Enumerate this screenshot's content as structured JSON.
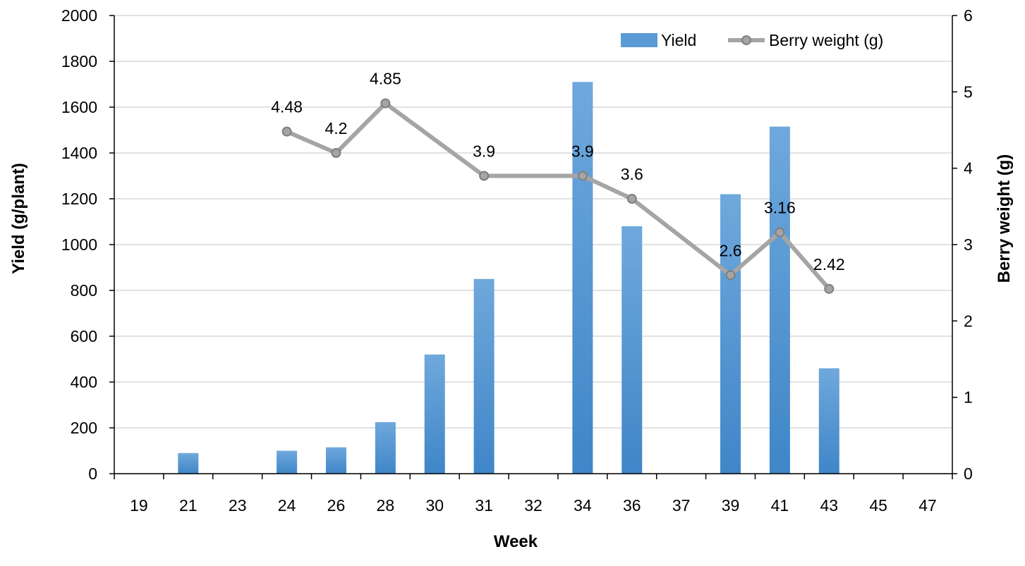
{
  "chart_data": {
    "type": "bar",
    "categories": [
      "19",
      "21",
      "23",
      "24",
      "26",
      "28",
      "30",
      "31",
      "32",
      "34",
      "36",
      "37",
      "39",
      "41",
      "43",
      "45",
      "47"
    ],
    "series": [
      {
        "name": "Yield",
        "type": "bar",
        "axis": "left",
        "color": "#5B9BD5",
        "values": [
          null,
          90,
          null,
          100,
          115,
          225,
          520,
          850,
          null,
          1710,
          1080,
          null,
          1220,
          1515,
          460,
          null,
          null
        ]
      },
      {
        "name": "Berry weight (g)",
        "type": "line",
        "axis": "right",
        "color": "#A5A5A5",
        "values": [
          null,
          null,
          null,
          4.48,
          4.2,
          4.85,
          null,
          3.9,
          null,
          3.9,
          3.6,
          null,
          2.6,
          3.16,
          2.42,
          null,
          null
        ],
        "labels": [
          null,
          null,
          null,
          "4.48",
          "4.2",
          "4.85",
          null,
          "3.9",
          null,
          "3.9",
          "3.6",
          null,
          "2.6",
          "3.16",
          "2.42",
          null,
          null
        ]
      }
    ],
    "xlabel": "Week",
    "ylabel": "Yield (g/plant)",
    "y2label": "Berry weight (g)",
    "ylim": [
      0,
      2000
    ],
    "yticks": [
      "0",
      "200",
      "400",
      "600",
      "800",
      "1000",
      "1200",
      "1400",
      "1600",
      "1800",
      "2000"
    ],
    "y2lim": [
      0,
      6
    ],
    "y2ticks": [
      "0",
      "1",
      "2",
      "3",
      "4",
      "5",
      "6"
    ],
    "grid": true,
    "legend": "top-right"
  }
}
